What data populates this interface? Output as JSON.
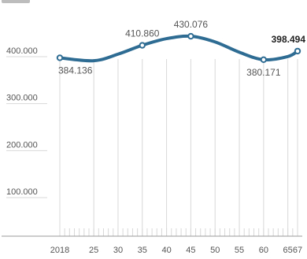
{
  "chart_data": {
    "type": "line",
    "title": "",
    "xlabel": "",
    "ylabel": "",
    "x": [
      2018,
      2025,
      2030,
      2035,
      2040,
      2045,
      2050,
      2055,
      2060,
      2065,
      2067
    ],
    "y": [
      384136,
      378000,
      392000,
      410860,
      425000,
      430076,
      418000,
      396000,
      380171,
      387000,
      398494
    ],
    "xlim": [
      2018,
      2067
    ],
    "ylim": [
      0,
      430076
    ],
    "x_ticks": [
      {
        "v": 2018,
        "label": "2018"
      },
      {
        "v": 2025,
        "label": "25"
      },
      {
        "v": 2030,
        "label": "30"
      },
      {
        "v": 2035,
        "label": "35"
      },
      {
        "v": 2040,
        "label": "40"
      },
      {
        "v": 2045,
        "label": "45"
      },
      {
        "v": 2050,
        "label": "50"
      },
      {
        "v": 2055,
        "label": "55"
      },
      {
        "v": 2060,
        "label": "60"
      },
      {
        "v": 2065,
        "label": "65"
      },
      {
        "v": 2067,
        "label": "67"
      }
    ],
    "y_ticks": [
      {
        "v": 100000,
        "label": "100.000"
      },
      {
        "v": 200000,
        "label": "200.000"
      },
      {
        "v": 300000,
        "label": "300.000"
      },
      {
        "v": 400000,
        "label": "400.000"
      }
    ],
    "data_labels": [
      {
        "x": 2018,
        "y": 384136,
        "text": "384.136",
        "pos": "below",
        "strong": false
      },
      {
        "x": 2035,
        "y": 410860,
        "text": "410.860",
        "pos": "above",
        "strong": false
      },
      {
        "x": 2045,
        "y": 430076,
        "text": "430.076",
        "pos": "above",
        "strong": false
      },
      {
        "x": 2060,
        "y": 380171,
        "text": "380.171",
        "pos": "below",
        "strong": false
      },
      {
        "x": 2067,
        "y": 398494,
        "text": "398.494",
        "pos": "above",
        "strong": true
      }
    ],
    "grid": "vertical",
    "legend": "none",
    "colors": {
      "line": "#2f6c93",
      "point": "#2f6c93",
      "grid": "#d8d8d8"
    }
  }
}
